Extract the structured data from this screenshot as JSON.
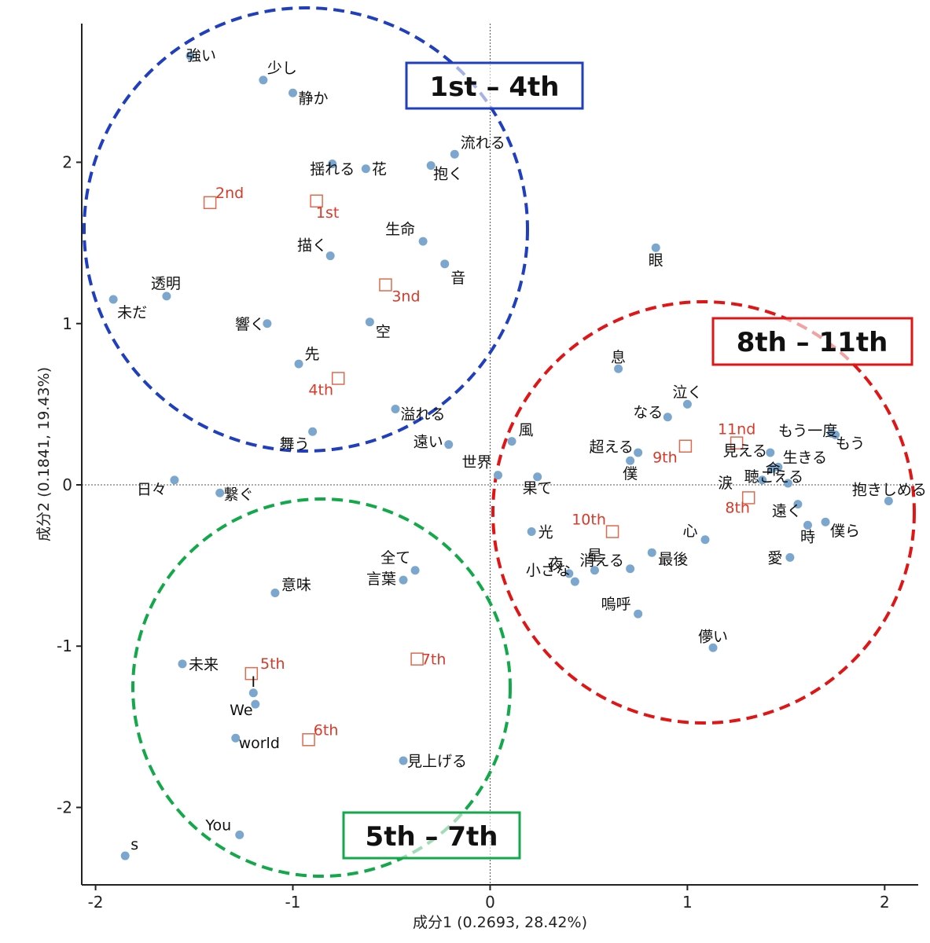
{
  "chart_data": {
    "type": "scatter",
    "xlabel": "成分1 (0.2693, 28.42%)",
    "ylabel": "成分2 (0.1841, 19.43%)",
    "xlim": [
      -2.07,
      2.17
    ],
    "ylim": [
      -2.48,
      2.86
    ],
    "xticks": [
      -2,
      -1,
      0,
      1,
      2
    ],
    "yticks": [
      -2,
      -1,
      0,
      1,
      2
    ],
    "x_tick_labels": [
      "-2",
      "-1",
      "0",
      "1",
      "2"
    ],
    "y_tick_labels": [
      "-2",
      "-1",
      "0",
      "1",
      "2"
    ],
    "reference_lines": {
      "x": 0,
      "y": 0
    },
    "grid": false,
    "colors": {
      "word_point": "#7ba7cf",
      "song_marker": "#e06a4e",
      "song_label": "#d83a2a",
      "axis": "#222222"
    },
    "words": [
      {
        "text": "強い",
        "x": -1.52,
        "y": 2.66
      },
      {
        "text": "少し",
        "x": -1.15,
        "y": 2.51
      },
      {
        "text": "静か",
        "x": -1.0,
        "y": 2.43
      },
      {
        "text": "流れる",
        "x": -0.18,
        "y": 2.05
      },
      {
        "text": "揺れる",
        "x": -0.8,
        "y": 1.99
      },
      {
        "text": "花",
        "x": -0.63,
        "y": 1.96
      },
      {
        "text": "抱く",
        "x": -0.3,
        "y": 1.98
      },
      {
        "text": "生命",
        "x": -0.34,
        "y": 1.51
      },
      {
        "text": "描く",
        "x": -0.81,
        "y": 1.42
      },
      {
        "text": "音",
        "x": -0.23,
        "y": 1.37
      },
      {
        "text": "透明",
        "x": -1.64,
        "y": 1.17
      },
      {
        "text": "未だ",
        "x": -1.91,
        "y": 1.15
      },
      {
        "text": "響く",
        "x": -1.13,
        "y": 1.0
      },
      {
        "text": "空",
        "x": -0.61,
        "y": 1.01
      },
      {
        "text": "先",
        "x": -0.97,
        "y": 0.75
      },
      {
        "text": "溢れる",
        "x": -0.48,
        "y": 0.47
      },
      {
        "text": "舞う",
        "x": -0.9,
        "y": 0.33
      },
      {
        "text": "遠い",
        "x": -0.21,
        "y": 0.25
      },
      {
        "text": "世界",
        "x": 0.04,
        "y": 0.06
      },
      {
        "text": "日々",
        "x": -1.6,
        "y": 0.03
      },
      {
        "text": "繋ぐ",
        "x": -1.37,
        "y": -0.05
      },
      {
        "text": "眼",
        "x": 0.84,
        "y": 1.47
      },
      {
        "text": "息",
        "x": 0.65,
        "y": 0.72
      },
      {
        "text": "泣く",
        "x": 1.0,
        "y": 0.5
      },
      {
        "text": "なる",
        "x": 0.9,
        "y": 0.42
      },
      {
        "text": "風",
        "x": 0.11,
        "y": 0.27
      },
      {
        "text": "超える",
        "x": 0.75,
        "y": 0.2
      },
      {
        "text": "僕",
        "x": 0.71,
        "y": 0.15
      },
      {
        "text": "もう一度",
        "x": 1.73,
        "y": 0.32
      },
      {
        "text": "もう",
        "x": 1.75,
        "y": 0.31
      },
      {
        "text": "見える",
        "x": 1.42,
        "y": 0.2
      },
      {
        "text": "生きる",
        "x": 1.46,
        "y": 0.11
      },
      {
        "text": "命",
        "x": 1.43,
        "y": 0.1
      },
      {
        "text": "果て",
        "x": 0.24,
        "y": 0.05
      },
      {
        "text": "抱きしめる",
        "x": 2.02,
        "y": -0.1
      },
      {
        "text": "涙",
        "x": 1.38,
        "y": 0.03
      },
      {
        "text": "聴こえる",
        "x": 1.51,
        "y": 0.01
      },
      {
        "text": "遠く",
        "x": 1.56,
        "y": -0.12
      },
      {
        "text": "時",
        "x": 1.61,
        "y": -0.25
      },
      {
        "text": "僕ら",
        "x": 1.7,
        "y": -0.23
      },
      {
        "text": "光",
        "x": 0.21,
        "y": -0.29
      },
      {
        "text": "心",
        "x": 1.09,
        "y": -0.34
      },
      {
        "text": "夜",
        "x": 0.4,
        "y": -0.55
      },
      {
        "text": "星",
        "x": 0.53,
        "y": -0.53
      },
      {
        "text": "小さな",
        "x": 0.43,
        "y": -0.6
      },
      {
        "text": "消える",
        "x": 0.71,
        "y": -0.52
      },
      {
        "text": "最後",
        "x": 0.82,
        "y": -0.42
      },
      {
        "text": "愛",
        "x": 1.52,
        "y": -0.45
      },
      {
        "text": "嗚呼",
        "x": 0.75,
        "y": -0.8
      },
      {
        "text": "儚い",
        "x": 1.13,
        "y": -1.01
      },
      {
        "text": "全て",
        "x": -0.38,
        "y": -0.53
      },
      {
        "text": "言葉",
        "x": -0.44,
        "y": -0.59
      },
      {
        "text": "意味",
        "x": -1.09,
        "y": -0.67
      },
      {
        "text": "未来",
        "x": -1.56,
        "y": -1.11
      },
      {
        "text": "I",
        "x": -1.2,
        "y": -1.29
      },
      {
        "text": "We",
        "x": -1.19,
        "y": -1.36
      },
      {
        "text": "world",
        "x": -1.29,
        "y": -1.57
      },
      {
        "text": "見上げる",
        "x": -0.44,
        "y": -1.71
      },
      {
        "text": "You",
        "x": -1.27,
        "y": -2.17
      },
      {
        "text": "s",
        "x": -1.85,
        "y": -2.3
      }
    ],
    "songs": [
      {
        "text": "1st",
        "x": -0.88,
        "y": 1.76
      },
      {
        "text": "2nd",
        "x": -1.42,
        "y": 1.75
      },
      {
        "text": "3nd",
        "x": -0.53,
        "y": 1.24
      },
      {
        "text": "4th",
        "x": -0.77,
        "y": 0.66
      },
      {
        "text": "5th",
        "x": -1.21,
        "y": -1.17
      },
      {
        "text": "6th",
        "x": -0.92,
        "y": -1.58
      },
      {
        "text": "7th",
        "x": -0.37,
        "y": -1.08
      },
      {
        "text": "8th",
        "x": 1.31,
        "y": -0.08
      },
      {
        "text": "9th",
        "x": 0.99,
        "y": 0.24
      },
      {
        "text": "10th",
        "x": 0.62,
        "y": -0.29
      },
      {
        "text": "11nd",
        "x": 1.25,
        "y": 0.26
      }
    ],
    "groups": [
      {
        "label": "1st – 4th",
        "color": "#1f3fbf"
      },
      {
        "label": "8th – 11th",
        "color": "#e01515"
      },
      {
        "label": "5th – 7th",
        "color": "#13a84a"
      }
    ]
  }
}
